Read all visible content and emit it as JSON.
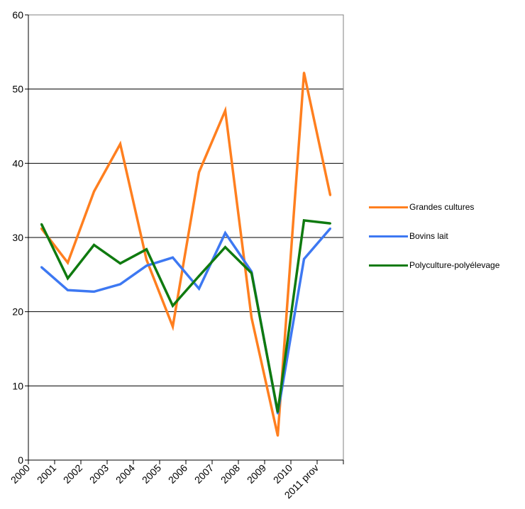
{
  "chart_data": {
    "type": "line",
    "title": "",
    "xlabel": "",
    "ylabel": "",
    "categories": [
      "2000",
      "2001",
      "2002",
      "2003",
      "2004",
      "2005",
      "2006",
      "2007",
      "2008",
      "2009",
      "2010",
      "2011 prov"
    ],
    "ylim": [
      0,
      60
    ],
    "yticks": [
      0,
      10,
      20,
      30,
      40,
      50,
      60
    ],
    "grid": true,
    "legend_position": "right",
    "series": [
      {
        "name": "Grandes cultures",
        "color": "#ff7f1f",
        "values": [
          31.2,
          26.6,
          36.2,
          42.6,
          27.0,
          18.0,
          38.8,
          47.1,
          19.2,
          3.3,
          52.2,
          35.7
        ]
      },
      {
        "name": "Bovins lait",
        "color": "#3d78f2",
        "values": [
          26.0,
          22.9,
          22.7,
          23.7,
          26.2,
          27.3,
          23.1,
          30.6,
          25.4,
          6.3,
          27.1,
          31.2
        ]
      },
      {
        "name": "Polyculture-polyélevage",
        "color": "#0f7a0f",
        "values": [
          31.8,
          24.5,
          29.0,
          26.5,
          28.4,
          20.8,
          24.8,
          28.7,
          25.2,
          6.5,
          32.3,
          31.9
        ]
      }
    ]
  }
}
